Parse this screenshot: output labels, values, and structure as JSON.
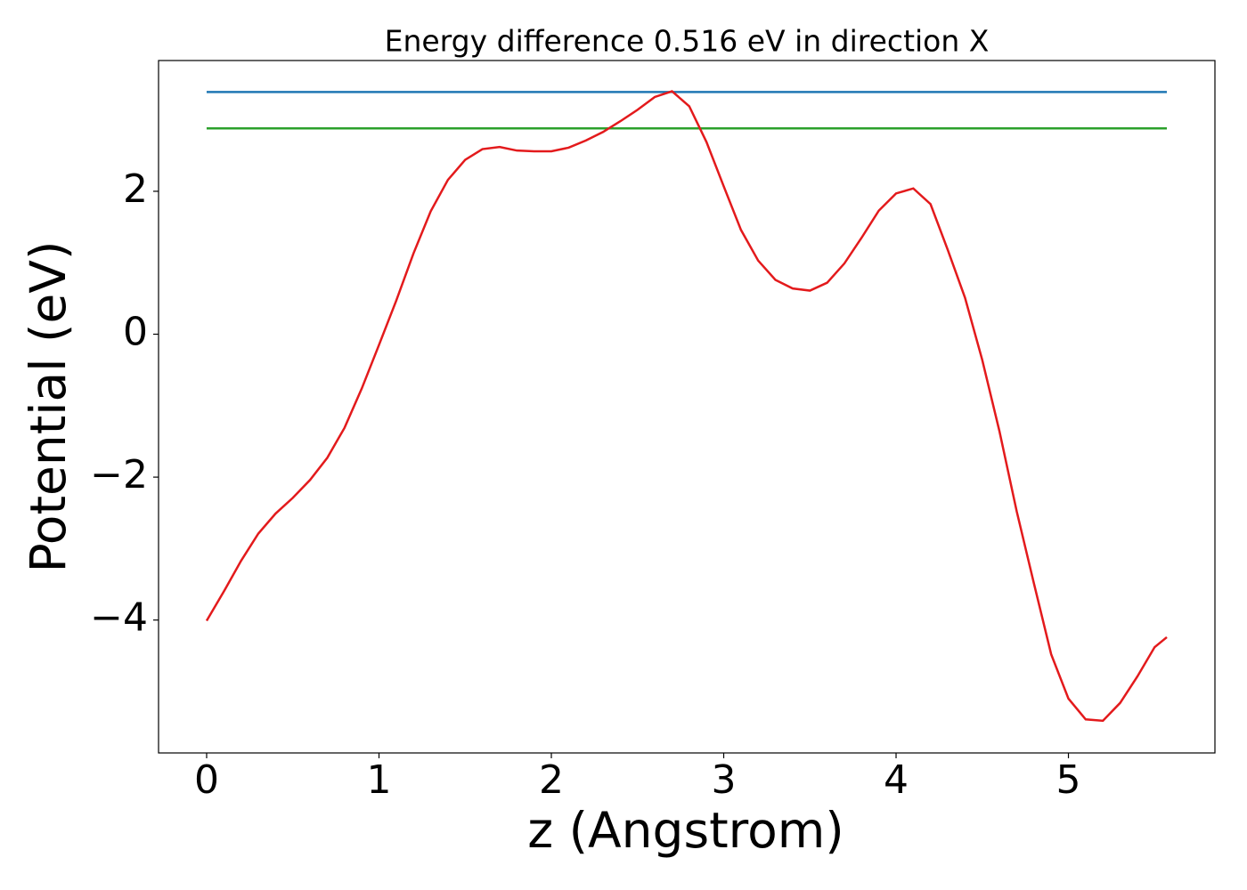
{
  "chart_data": {
    "type": "line",
    "title": "Energy difference 0.516 eV in direction X",
    "xlabel": "z (Angstrom)",
    "ylabel": "Potential (eV)",
    "xlim": [
      -0.279,
      5.85
    ],
    "ylim": [
      -5.86,
      3.83
    ],
    "xticks": [
      0,
      1,
      2,
      3,
      4,
      5
    ],
    "yticks": [
      {
        "value": -4,
        "label": "−4"
      },
      {
        "value": -2,
        "label": "−2"
      },
      0,
      2
    ],
    "grid": false,
    "series": [
      {
        "color": "#1f77b4",
        "x": [
          0,
          5.571
        ],
        "values": [
          3.39,
          3.39
        ]
      },
      {
        "color": "#2ca02c",
        "x": [
          0,
          5.571
        ],
        "values": [
          2.88,
          2.88
        ]
      },
      {
        "color": "#e31a1c",
        "x": [
          0,
          0.1,
          0.2,
          0.3,
          0.4,
          0.5,
          0.6,
          0.7,
          0.8,
          0.9,
          1.0,
          1.1,
          1.2,
          1.3,
          1.4,
          1.5,
          1.6,
          1.7,
          1.8,
          1.9,
          2.0,
          2.1,
          2.2,
          2.3,
          2.4,
          2.5,
          2.6,
          2.7,
          2.8,
          2.9,
          3.0,
          3.1,
          3.2,
          3.3,
          3.4,
          3.5,
          3.6,
          3.7,
          3.8,
          3.9,
          4.0,
          4.1,
          4.2,
          4.3,
          4.4,
          4.5,
          4.6,
          4.7,
          4.8,
          4.9,
          5.0,
          5.1,
          5.2,
          5.3,
          5.4,
          5.5,
          5.571
        ],
        "values": [
          -4.01,
          -3.6,
          -3.17,
          -2.79,
          -2.51,
          -2.29,
          -2.04,
          -1.73,
          -1.31,
          -0.76,
          -0.15,
          0.47,
          1.13,
          1.72,
          2.16,
          2.44,
          2.59,
          2.62,
          2.57,
          2.56,
          2.56,
          2.61,
          2.71,
          2.83,
          2.98,
          3.14,
          3.32,
          3.4,
          3.19,
          2.69,
          2.07,
          1.46,
          1.03,
          0.76,
          0.64,
          0.61,
          0.72,
          0.99,
          1.35,
          1.73,
          1.97,
          2.04,
          1.82,
          1.18,
          0.51,
          -0.36,
          -1.36,
          -2.48,
          -3.49,
          -4.48,
          -5.1,
          -5.39,
          -5.41,
          -5.16,
          -4.79,
          -4.38,
          -4.24
        ]
      }
    ]
  }
}
